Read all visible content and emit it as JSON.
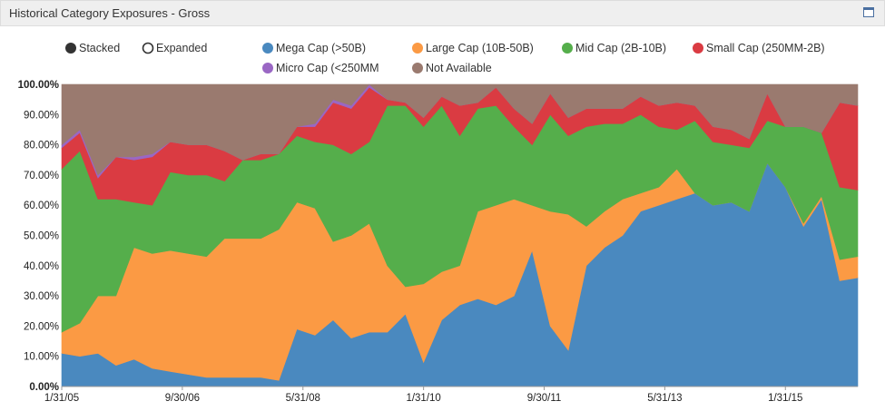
{
  "panel": {
    "title": "Historical Category Exposures - Gross",
    "window_icon": "maximize-icon"
  },
  "controls": {
    "stacked_label": "Stacked",
    "expanded_label": "Expanded",
    "selected": "stacked"
  },
  "chart_data": {
    "type": "area",
    "stacked": true,
    "title": "",
    "xlabel": "",
    "ylabel": "",
    "ylim": [
      0,
      100
    ],
    "y_ticks": [
      "0.00%",
      "10.00%",
      "20.00%",
      "30.00%",
      "40.00%",
      "50.00%",
      "60.00%",
      "70.00%",
      "80.00%",
      "90.00%",
      "100.00%"
    ],
    "x_ticks": [
      "1/31/05",
      "9/30/06",
      "5/31/08",
      "1/31/10",
      "9/30/11",
      "5/31/13",
      "1/31/15"
    ],
    "legend_position": "top-right",
    "grid": true,
    "x": [
      "2005-01",
      "2005-04",
      "2005-07",
      "2005-10",
      "2006-01",
      "2006-04",
      "2006-07",
      "2006-10",
      "2007-01",
      "2007-04",
      "2007-07",
      "2007-10",
      "2008-01",
      "2008-04",
      "2008-07",
      "2008-10",
      "2009-01",
      "2009-04",
      "2009-07",
      "2009-10",
      "2010-01",
      "2010-04",
      "2010-07",
      "2010-10",
      "2011-01",
      "2011-04",
      "2011-07",
      "2011-10",
      "2012-01",
      "2012-04",
      "2012-07",
      "2012-10",
      "2013-01",
      "2013-04",
      "2013-07",
      "2013-10",
      "2014-01",
      "2014-04",
      "2014-07",
      "2014-10",
      "2015-01",
      "2015-04",
      "2015-07",
      "2015-10",
      "2016-01"
    ],
    "series": [
      {
        "name": "Mega Cap (>50B)",
        "color": "#4a89bf",
        "values": [
          11,
          10,
          11,
          7,
          9,
          6,
          5,
          4,
          3,
          3,
          3,
          3,
          2,
          19,
          17,
          22,
          16,
          18,
          18,
          24,
          8,
          22,
          27,
          29,
          27,
          30,
          45,
          20,
          12,
          40,
          46,
          50,
          58,
          60,
          62,
          64,
          60,
          61,
          58,
          74,
          66,
          53,
          62,
          35,
          36
        ]
      },
      {
        "name": "Large Cap (10B-50B)",
        "color": "#fb9a44",
        "values": [
          7,
          11,
          19,
          23,
          37,
          38,
          40,
          40,
          40,
          46,
          46,
          46,
          50,
          42,
          42,
          26,
          34,
          36,
          22,
          9,
          26,
          16,
          13,
          29,
          33,
          32,
          15,
          38,
          45,
          13,
          12,
          12,
          6,
          6,
          10,
          0,
          0,
          0,
          0,
          0,
          0,
          1,
          1,
          7,
          7
        ]
      },
      {
        "name": "Mid Cap (2B-10B)",
        "color": "#55ae4b",
        "values": [
          54,
          57,
          32,
          32,
          15,
          16,
          26,
          26,
          27,
          19,
          26,
          26,
          25,
          22,
          22,
          32,
          27,
          27,
          53,
          60,
          52,
          55,
          43,
          34,
          33,
          24,
          20,
          32,
          26,
          33,
          29,
          25,
          26,
          20,
          13,
          24,
          21,
          19,
          21,
          14,
          20,
          32,
          21,
          24,
          22
        ]
      },
      {
        "name": "Small Cap (250MM-2B)",
        "color": "#da3b42",
        "values": [
          7,
          6,
          7,
          14,
          14,
          16,
          10,
          10,
          10,
          10,
          0,
          2,
          0,
          3,
          5,
          14,
          15,
          18,
          2,
          1,
          3,
          3,
          10,
          2,
          6,
          6,
          7,
          7,
          6,
          6,
          5,
          5,
          6,
          7,
          9,
          5,
          5,
          5,
          3,
          9,
          0,
          0,
          0,
          28,
          28
        ]
      },
      {
        "name": "Micro Cap (<250MM",
        "color": "#9a67c4",
        "values": [
          1,
          1,
          1,
          0,
          1,
          1,
          0,
          0,
          0,
          0,
          0,
          0,
          0,
          0,
          1,
          1,
          1,
          1,
          0,
          0,
          0,
          0,
          0,
          0,
          0,
          0,
          0,
          0,
          0,
          0,
          0,
          0,
          0,
          0,
          0,
          0,
          0,
          0,
          0,
          0,
          0,
          0,
          0,
          0,
          0
        ]
      },
      {
        "name": "Not Available",
        "color": "#9a7a6f",
        "values": [
          20,
          15,
          30,
          24,
          24,
          23,
          19,
          20,
          20,
          22,
          25,
          23,
          23,
          14,
          13,
          5,
          7,
          0,
          5,
          6,
          11,
          4,
          7,
          6,
          1,
          8,
          13,
          3,
          11,
          8,
          8,
          8,
          4,
          7,
          6,
          7,
          14,
          15,
          18,
          3,
          14,
          14,
          16,
          6,
          7
        ]
      }
    ]
  }
}
